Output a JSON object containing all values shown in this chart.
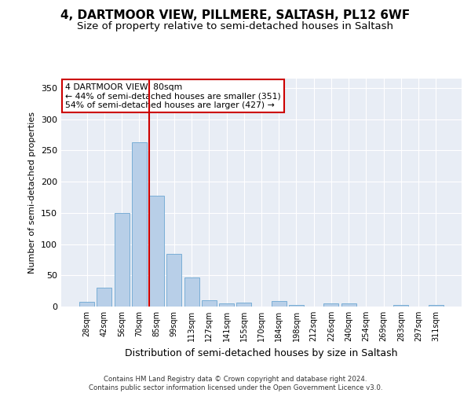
{
  "title": "4, DARTMOOR VIEW, PILLMERE, SALTASH, PL12 6WF",
  "subtitle": "Size of property relative to semi-detached houses in Saltash",
  "xlabel": "Distribution of semi-detached houses by size in Saltash",
  "ylabel": "Number of semi-detached properties",
  "footnote": "Contains HM Land Registry data © Crown copyright and database right 2024.\nContains public sector information licensed under the Open Government Licence v3.0.",
  "bar_labels": [
    "28sqm",
    "42sqm",
    "56sqm",
    "70sqm",
    "85sqm",
    "99sqm",
    "113sqm",
    "127sqm",
    "141sqm",
    "155sqm",
    "170sqm",
    "184sqm",
    "198sqm",
    "212sqm",
    "226sqm",
    "240sqm",
    "254sqm",
    "269sqm",
    "283sqm",
    "297sqm",
    "311sqm"
  ],
  "bar_values": [
    7,
    30,
    150,
    263,
    178,
    84,
    46,
    10,
    5,
    6,
    0,
    9,
    3,
    0,
    5,
    5,
    0,
    0,
    3,
    0,
    3
  ],
  "bar_color": "#b8cfe8",
  "bar_edge_color": "#7aaed6",
  "vline_color": "#cc0000",
  "annotation_text": "4 DARTMOOR VIEW: 80sqm\n← 44% of semi-detached houses are smaller (351)\n54% of semi-detached houses are larger (427) →",
  "annotation_box_color": "#ffffff",
  "annotation_box_edge": "#cc0000",
  "ylim": [
    0,
    365
  ],
  "yticks": [
    0,
    50,
    100,
    150,
    200,
    250,
    300,
    350
  ],
  "plot_bg_color": "#e8edf5",
  "title_fontsize": 11,
  "subtitle_fontsize": 9.5
}
